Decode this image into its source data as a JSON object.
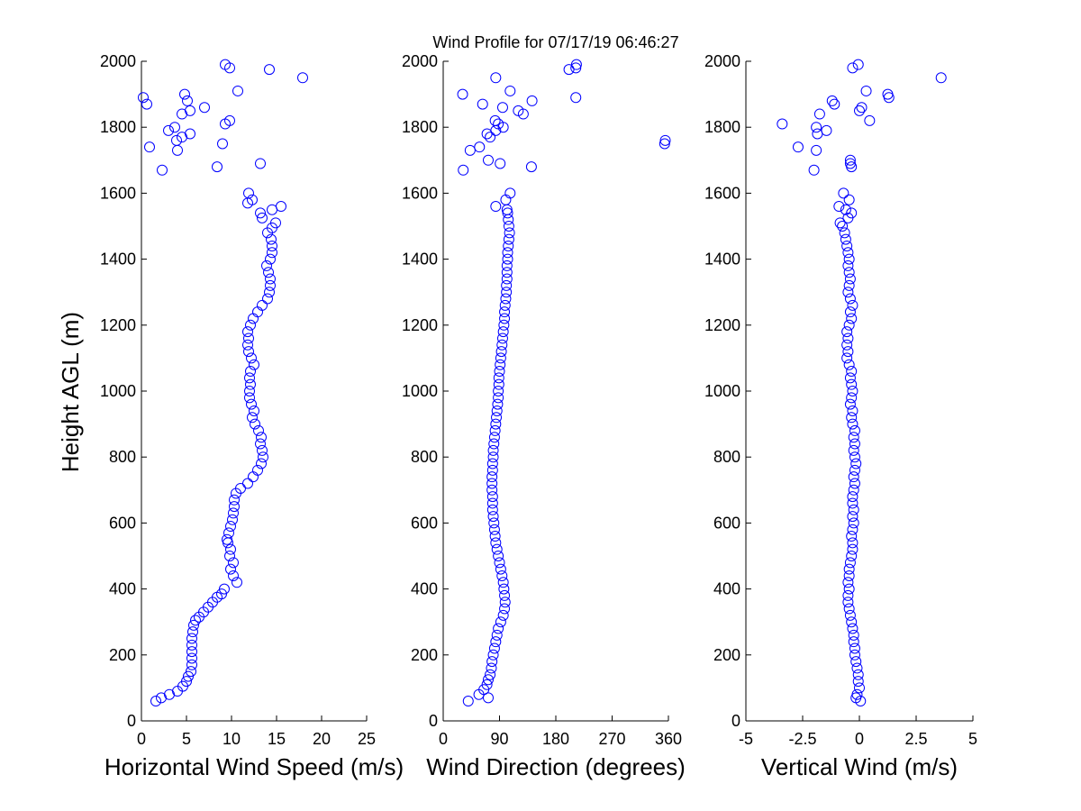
{
  "title": "Wind Profile for  07/17/19 06:46:27",
  "ylabel": "Height AGL (m)",
  "marker_color": "#0000ff",
  "chart_data": [
    {
      "type": "scatter",
      "xlabel": "Horizontal Wind Speed (m/s)",
      "xlim": [
        0,
        25
      ],
      "ylim": [
        0,
        2000
      ],
      "xticks": [
        "0",
        "5",
        "10",
        "15",
        "20",
        "25"
      ],
      "xtick_values": [
        0,
        5,
        10,
        15,
        20,
        25
      ],
      "yticks": [
        "0",
        "200",
        "400",
        "600",
        "800",
        "1000",
        "1200",
        "1400",
        "1600",
        "1800",
        "2000"
      ],
      "ytick_values": [
        0,
        200,
        400,
        600,
        800,
        1000,
        1200,
        1400,
        1600,
        1800,
        2000
      ],
      "grid": false,
      "points": [
        [
          1.6,
          60
        ],
        [
          2.2,
          70
        ],
        [
          3.1,
          80
        ],
        [
          4.0,
          90
        ],
        [
          4.6,
          105
        ],
        [
          5.0,
          120
        ],
        [
          5.2,
          135
        ],
        [
          5.5,
          150
        ],
        [
          5.6,
          170
        ],
        [
          5.6,
          190
        ],
        [
          5.6,
          210
        ],
        [
          5.6,
          230
        ],
        [
          5.6,
          250
        ],
        [
          5.7,
          270
        ],
        [
          5.8,
          290
        ],
        [
          6.0,
          305
        ],
        [
          6.4,
          315
        ],
        [
          6.9,
          330
        ],
        [
          7.4,
          345
        ],
        [
          7.9,
          360
        ],
        [
          8.4,
          375
        ],
        [
          8.9,
          385
        ],
        [
          9.2,
          400
        ],
        [
          10.6,
          420
        ],
        [
          10.2,
          440
        ],
        [
          9.9,
          460
        ],
        [
          10.2,
          480
        ],
        [
          9.8,
          500
        ],
        [
          9.9,
          520
        ],
        [
          9.6,
          540
        ],
        [
          9.5,
          550
        ],
        [
          9.7,
          570
        ],
        [
          9.9,
          590
        ],
        [
          10.1,
          610
        ],
        [
          10.2,
          630
        ],
        [
          10.3,
          650
        ],
        [
          10.3,
          670
        ],
        [
          10.5,
          690
        ],
        [
          11.0,
          705
        ],
        [
          11.8,
          720
        ],
        [
          12.4,
          740
        ],
        [
          12.9,
          760
        ],
        [
          13.3,
          780
        ],
        [
          13.5,
          800
        ],
        [
          13.4,
          820
        ],
        [
          13.2,
          840
        ],
        [
          13.3,
          860
        ],
        [
          13.0,
          880
        ],
        [
          12.6,
          900
        ],
        [
          12.3,
          920
        ],
        [
          12.5,
          940
        ],
        [
          12.2,
          960
        ],
        [
          12.0,
          980
        ],
        [
          12.0,
          1000
        ],
        [
          12.1,
          1020
        ],
        [
          12.0,
          1040
        ],
        [
          12.1,
          1060
        ],
        [
          12.5,
          1080
        ],
        [
          12.2,
          1100
        ],
        [
          11.9,
          1120
        ],
        [
          11.8,
          1140
        ],
        [
          11.9,
          1160
        ],
        [
          11.8,
          1180
        ],
        [
          12.1,
          1200
        ],
        [
          12.4,
          1220
        ],
        [
          12.9,
          1240
        ],
        [
          13.4,
          1260
        ],
        [
          14.0,
          1280
        ],
        [
          14.2,
          1300
        ],
        [
          14.3,
          1320
        ],
        [
          14.3,
          1340
        ],
        [
          14.1,
          1360
        ],
        [
          13.9,
          1380
        ],
        [
          14.3,
          1400
        ],
        [
          14.5,
          1420
        ],
        [
          14.5,
          1440
        ],
        [
          14.4,
          1460
        ],
        [
          14.0,
          1480
        ],
        [
          14.5,
          1495
        ],
        [
          14.9,
          1510
        ],
        [
          13.4,
          1525
        ],
        [
          13.2,
          1540
        ],
        [
          14.5,
          1550
        ],
        [
          15.5,
          1560
        ],
        [
          11.8,
          1570
        ],
        [
          12.3,
          1580
        ],
        [
          11.9,
          1600
        ],
        [
          2.3,
          1670
        ],
        [
          8.4,
          1680
        ],
        [
          13.2,
          1690
        ],
        [
          4.0,
          1730
        ],
        [
          0.9,
          1740
        ],
        [
          9.0,
          1750
        ],
        [
          3.9,
          1760
        ],
        [
          4.5,
          1770
        ],
        [
          5.4,
          1780
        ],
        [
          3.0,
          1790
        ],
        [
          3.7,
          1800
        ],
        [
          9.3,
          1810
        ],
        [
          9.8,
          1820
        ],
        [
          4.5,
          1840
        ],
        [
          5.4,
          1850
        ],
        [
          7.0,
          1860
        ],
        [
          0.6,
          1870
        ],
        [
          5.1,
          1880
        ],
        [
          0.2,
          1890
        ],
        [
          4.8,
          1900
        ],
        [
          10.7,
          1910
        ],
        [
          17.9,
          1950
        ],
        [
          14.2,
          1975
        ],
        [
          9.8,
          1980
        ],
        [
          9.3,
          1990
        ]
      ]
    },
    {
      "type": "scatter",
      "xlabel": "Wind Direction (degrees)",
      "xlim": [
        0,
        360
      ],
      "ylim": [
        0,
        2000
      ],
      "xticks": [
        "0",
        "90",
        "180",
        "270",
        "360"
      ],
      "xtick_values": [
        0,
        90,
        180,
        270,
        360
      ],
      "yticks": [
        "0",
        "200",
        "400",
        "600",
        "800",
        "1000",
        "1200",
        "1400",
        "1600",
        "1800",
        "2000"
      ],
      "ytick_values": [
        0,
        200,
        400,
        600,
        800,
        1000,
        1200,
        1400,
        1600,
        1800,
        2000
      ],
      "grid": false,
      "points": [
        [
          40,
          60
        ],
        [
          72,
          70
        ],
        [
          57,
          80
        ],
        [
          65,
          95
        ],
        [
          70,
          110
        ],
        [
          72,
          125
        ],
        [
          75,
          140
        ],
        [
          77,
          160
        ],
        [
          78,
          180
        ],
        [
          80,
          200
        ],
        [
          82,
          220
        ],
        [
          84,
          240
        ],
        [
          86,
          260
        ],
        [
          88,
          280
        ],
        [
          92,
          300
        ],
        [
          96,
          320
        ],
        [
          98,
          340
        ],
        [
          99,
          360
        ],
        [
          98,
          380
        ],
        [
          97,
          400
        ],
        [
          96,
          420
        ],
        [
          94,
          440
        ],
        [
          92,
          460
        ],
        [
          90,
          480
        ],
        [
          88,
          500
        ],
        [
          86,
          520
        ],
        [
          84,
          540
        ],
        [
          83,
          560
        ],
        [
          82,
          580
        ],
        [
          81,
          600
        ],
        [
          80,
          620
        ],
        [
          79,
          640
        ],
        [
          79,
          660
        ],
        [
          79,
          680
        ],
        [
          78,
          700
        ],
        [
          78,
          720
        ],
        [
          78,
          740
        ],
        [
          79,
          760
        ],
        [
          79,
          780
        ],
        [
          80,
          800
        ],
        [
          80,
          820
        ],
        [
          81,
          840
        ],
        [
          82,
          860
        ],
        [
          83,
          880
        ],
        [
          84,
          900
        ],
        [
          85,
          920
        ],
        [
          86,
          940
        ],
        [
          87,
          960
        ],
        [
          88,
          980
        ],
        [
          88,
          1000
        ],
        [
          89,
          1020
        ],
        [
          89,
          1040
        ],
        [
          90,
          1060
        ],
        [
          91,
          1080
        ],
        [
          92,
          1100
        ],
        [
          93,
          1120
        ],
        [
          94,
          1140
        ],
        [
          95,
          1160
        ],
        [
          96,
          1180
        ],
        [
          97,
          1200
        ],
        [
          98,
          1220
        ],
        [
          98,
          1240
        ],
        [
          99,
          1260
        ],
        [
          100,
          1280
        ],
        [
          101,
          1300
        ],
        [
          101,
          1320
        ],
        [
          102,
          1340
        ],
        [
          102,
          1360
        ],
        [
          102,
          1380
        ],
        [
          103,
          1400
        ],
        [
          103,
          1420
        ],
        [
          104,
          1440
        ],
        [
          105,
          1460
        ],
        [
          106,
          1480
        ],
        [
          105,
          1500
        ],
        [
          104,
          1520
        ],
        [
          103,
          1540
        ],
        [
          102,
          1550
        ],
        [
          84,
          1560
        ],
        [
          100,
          1580
        ],
        [
          107,
          1600
        ],
        [
          32,
          1670
        ],
        [
          141,
          1680
        ],
        [
          91,
          1690
        ],
        [
          72,
          1700
        ],
        [
          354,
          1750
        ],
        [
          355,
          1760
        ],
        [
          43,
          1730
        ],
        [
          58,
          1740
        ],
        [
          75,
          1770
        ],
        [
          70,
          1780
        ],
        [
          84,
          1790
        ],
        [
          96,
          1800
        ],
        [
          88,
          1810
        ],
        [
          83,
          1820
        ],
        [
          128,
          1840
        ],
        [
          120,
          1850
        ],
        [
          95,
          1860
        ],
        [
          63,
          1870
        ],
        [
          142,
          1880
        ],
        [
          212,
          1890
        ],
        [
          31,
          1900
        ],
        [
          107,
          1910
        ],
        [
          84,
          1950
        ],
        [
          201,
          1975
        ],
        [
          212,
          1980
        ],
        [
          213,
          1990
        ]
      ]
    },
    {
      "type": "scatter",
      "xlabel": "Vertical Wind (m/s)",
      "xlim": [
        -5,
        5
      ],
      "ylim": [
        0,
        2000
      ],
      "xticks": [
        "-5",
        "-2.5",
        "0",
        "2.5",
        "5"
      ],
      "xtick_values": [
        -5,
        -2.5,
        0,
        2.5,
        5
      ],
      "yticks": [
        "0",
        "200",
        "400",
        "600",
        "800",
        "1000",
        "1200",
        "1400",
        "1600",
        "1800",
        "2000"
      ],
      "ytick_values": [
        0,
        200,
        400,
        600,
        800,
        1000,
        1200,
        1400,
        1600,
        1800,
        2000
      ],
      "grid": false,
      "points": [
        [
          0.05,
          60
        ],
        [
          -0.15,
          70
        ],
        [
          -0.1,
          80
        ],
        [
          0.0,
          100
        ],
        [
          -0.05,
          120
        ],
        [
          -0.05,
          140
        ],
        [
          -0.1,
          160
        ],
        [
          -0.15,
          180
        ],
        [
          -0.2,
          200
        ],
        [
          -0.2,
          220
        ],
        [
          -0.25,
          240
        ],
        [
          -0.25,
          260
        ],
        [
          -0.3,
          280
        ],
        [
          -0.35,
          300
        ],
        [
          -0.4,
          320
        ],
        [
          -0.45,
          340
        ],
        [
          -0.5,
          360
        ],
        [
          -0.5,
          380
        ],
        [
          -0.45,
          400
        ],
        [
          -0.5,
          420
        ],
        [
          -0.45,
          440
        ],
        [
          -0.45,
          460
        ],
        [
          -0.4,
          480
        ],
        [
          -0.35,
          500
        ],
        [
          -0.3,
          520
        ],
        [
          -0.3,
          540
        ],
        [
          -0.35,
          560
        ],
        [
          -0.3,
          580
        ],
        [
          -0.25,
          600
        ],
        [
          -0.3,
          620
        ],
        [
          -0.25,
          640
        ],
        [
          -0.3,
          660
        ],
        [
          -0.3,
          680
        ],
        [
          -0.25,
          700
        ],
        [
          -0.2,
          720
        ],
        [
          -0.25,
          740
        ],
        [
          -0.2,
          760
        ],
        [
          -0.15,
          780
        ],
        [
          -0.2,
          800
        ],
        [
          -0.25,
          820
        ],
        [
          -0.2,
          840
        ],
        [
          -0.25,
          860
        ],
        [
          -0.2,
          880
        ],
        [
          -0.3,
          900
        ],
        [
          -0.35,
          920
        ],
        [
          -0.3,
          940
        ],
        [
          -0.4,
          960
        ],
        [
          -0.35,
          980
        ],
        [
          -0.3,
          1000
        ],
        [
          -0.35,
          1020
        ],
        [
          -0.4,
          1040
        ],
        [
          -0.35,
          1060
        ],
        [
          -0.45,
          1080
        ],
        [
          -0.55,
          1100
        ],
        [
          -0.5,
          1120
        ],
        [
          -0.55,
          1140
        ],
        [
          -0.5,
          1160
        ],
        [
          -0.55,
          1180
        ],
        [
          -0.45,
          1200
        ],
        [
          -0.35,
          1220
        ],
        [
          -0.4,
          1240
        ],
        [
          -0.3,
          1260
        ],
        [
          -0.4,
          1280
        ],
        [
          -0.5,
          1300
        ],
        [
          -0.45,
          1320
        ],
        [
          -0.4,
          1340
        ],
        [
          -0.45,
          1360
        ],
        [
          -0.5,
          1380
        ],
        [
          -0.45,
          1400
        ],
        [
          -0.5,
          1420
        ],
        [
          -0.55,
          1440
        ],
        [
          -0.6,
          1460
        ],
        [
          -0.65,
          1480
        ],
        [
          -0.75,
          1500
        ],
        [
          -0.85,
          1510
        ],
        [
          -0.5,
          1525
        ],
        [
          -0.35,
          1540
        ],
        [
          -0.6,
          1550
        ],
        [
          -0.9,
          1560
        ],
        [
          -0.45,
          1580
        ],
        [
          -0.7,
          1600
        ],
        [
          -0.35,
          1680
        ],
        [
          -0.4,
          1690
        ],
        [
          -0.4,
          1700
        ],
        [
          -2.0,
          1670
        ],
        [
          -2.7,
          1740
        ],
        [
          -1.9,
          1730
        ],
        [
          -1.85,
          1780
        ],
        [
          -1.45,
          1790
        ],
        [
          -1.9,
          1800
        ],
        [
          -3.4,
          1810
        ],
        [
          -1.75,
          1840
        ],
        [
          0.45,
          1820
        ],
        [
          0.0,
          1850
        ],
        [
          0.1,
          1860
        ],
        [
          -1.1,
          1870
        ],
        [
          -1.2,
          1880
        ],
        [
          1.3,
          1890
        ],
        [
          1.25,
          1900
        ],
        [
          0.3,
          1910
        ],
        [
          3.6,
          1950
        ],
        [
          -0.3,
          1980
        ],
        [
          -0.05,
          1990
        ]
      ]
    }
  ]
}
